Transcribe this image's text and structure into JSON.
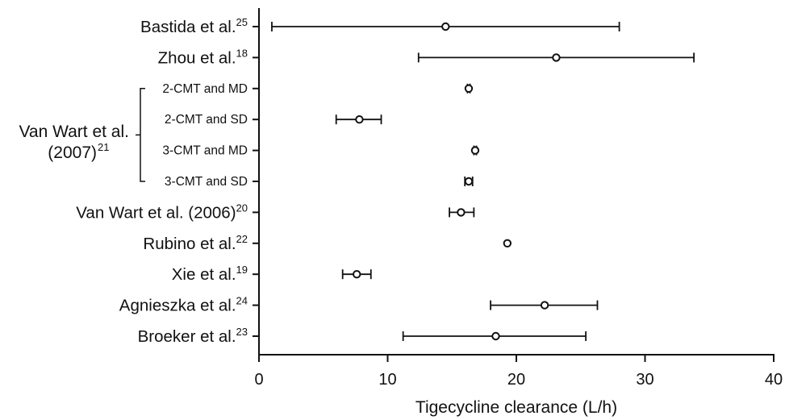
{
  "chart_data": {
    "type": "forest",
    "xlabel": "Tigecycline clearance (L/h)",
    "xlim": [
      0,
      40
    ],
    "xticks": [
      "0",
      "10",
      "20",
      "30",
      "40"
    ],
    "group_label": {
      "line1": "Van Wart et al.",
      "line2": "(2007)",
      "sup": "21"
    },
    "rows": [
      {
        "label": "Bastida et al.",
        "sup": "25",
        "mean": 14.5,
        "lo": 1.0,
        "hi": 28.0,
        "sub": false
      },
      {
        "label": "Zhou et al.",
        "sup": "18",
        "mean": 23.1,
        "lo": 12.4,
        "hi": 33.8,
        "sub": false
      },
      {
        "label": "2-CMT and MD",
        "sup": "",
        "mean": 16.3,
        "lo": 16.2,
        "hi": 16.4,
        "sub": true
      },
      {
        "label": "2-CMT and SD",
        "sup": "",
        "mean": 7.8,
        "lo": 6.0,
        "hi": 9.5,
        "sub": true
      },
      {
        "label": "3-CMT and MD",
        "sup": "",
        "mean": 16.8,
        "lo": 16.7,
        "hi": 16.9,
        "sub": true
      },
      {
        "label": "3-CMT and SD",
        "sup": "",
        "mean": 16.3,
        "lo": 16.0,
        "hi": 16.6,
        "sub": true
      },
      {
        "label": "Van Wart et al. (2006)",
        "sup": "20",
        "mean": 15.7,
        "lo": 14.8,
        "hi": 16.7,
        "sub": false
      },
      {
        "label": "Rubino et al.",
        "sup": "22",
        "mean": 19.3,
        "lo": 19.3,
        "hi": 19.3,
        "sub": false
      },
      {
        "label": "Xie et al.",
        "sup": "19",
        "mean": 7.6,
        "lo": 6.5,
        "hi": 8.7,
        "sub": false
      },
      {
        "label": "Agnieszka et al.",
        "sup": "24",
        "mean": 22.2,
        "lo": 18.0,
        "hi": 26.3,
        "sub": false
      },
      {
        "label": "Broeker et al.",
        "sup": "23",
        "mean": 18.4,
        "lo": 11.2,
        "hi": 25.4,
        "sub": false
      }
    ]
  }
}
